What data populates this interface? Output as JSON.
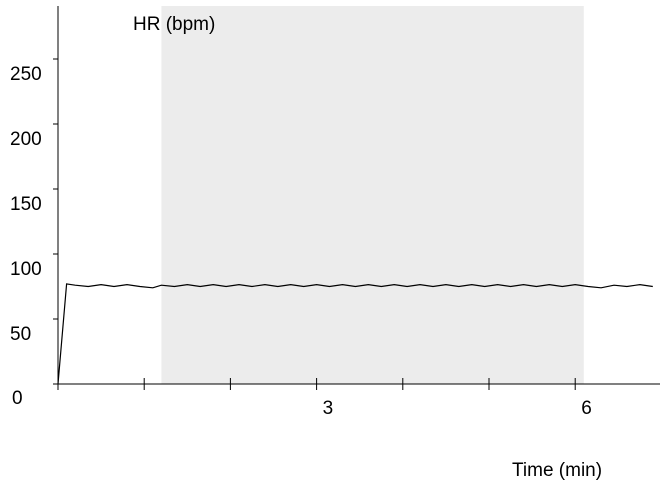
{
  "chart_data": {
    "type": "line",
    "ylabel": "HR (bpm)",
    "xlabel": "Time (min)",
    "ylim": [
      0,
      250
    ],
    "xlim": [
      0,
      6.9
    ],
    "y_ticks": [
      {
        "value": 0,
        "label": "0"
      },
      {
        "value": 50,
        "label": "50"
      },
      {
        "value": 100,
        "label": "100"
      },
      {
        "value": 150,
        "label": "150"
      },
      {
        "value": 200,
        "label": "200"
      },
      {
        "value": 250,
        "label": "250"
      }
    ],
    "x_ticks": [
      {
        "value": 0,
        "label": ""
      },
      {
        "value": 1,
        "label": ""
      },
      {
        "value": 2,
        "label": ""
      },
      {
        "value": 3,
        "label": "3"
      },
      {
        "value": 4,
        "label": ""
      },
      {
        "value": 5,
        "label": ""
      },
      {
        "value": 6,
        "label": "6"
      }
    ],
    "shaded_region": {
      "x_start": 1.2,
      "x_end": 6.1,
      "color": "#ececec"
    },
    "line_color": "#000000",
    "grid": false,
    "series": [
      {
        "values": [
          [
            0,
            0
          ],
          [
            0.1,
            77
          ],
          [
            0.2,
            76
          ],
          [
            0.35,
            75
          ],
          [
            0.5,
            76.5
          ],
          [
            0.65,
            75
          ],
          [
            0.8,
            76.5
          ],
          [
            0.95,
            75
          ],
          [
            1.1,
            74
          ],
          [
            1.2,
            76
          ],
          [
            1.35,
            75
          ],
          [
            1.5,
            76.5
          ],
          [
            1.65,
            75
          ],
          [
            1.8,
            76.5
          ],
          [
            1.95,
            75
          ],
          [
            2.1,
            76.5
          ],
          [
            2.25,
            75
          ],
          [
            2.4,
            76.5
          ],
          [
            2.55,
            75
          ],
          [
            2.7,
            76.5
          ],
          [
            2.85,
            75
          ],
          [
            3.0,
            76.5
          ],
          [
            3.15,
            75
          ],
          [
            3.3,
            76.5
          ],
          [
            3.45,
            75
          ],
          [
            3.6,
            76.5
          ],
          [
            3.75,
            75
          ],
          [
            3.9,
            76.5
          ],
          [
            4.05,
            75
          ],
          [
            4.2,
            76.5
          ],
          [
            4.35,
            75
          ],
          [
            4.5,
            76.5
          ],
          [
            4.65,
            75
          ],
          [
            4.8,
            76.5
          ],
          [
            4.95,
            75
          ],
          [
            5.1,
            76.5
          ],
          [
            5.25,
            75
          ],
          [
            5.4,
            76.5
          ],
          [
            5.55,
            75
          ],
          [
            5.7,
            76.5
          ],
          [
            5.85,
            75
          ],
          [
            6.0,
            76.5
          ],
          [
            6.15,
            75
          ],
          [
            6.3,
            74
          ],
          [
            6.45,
            76
          ],
          [
            6.6,
            75
          ],
          [
            6.75,
            76.5
          ],
          [
            6.9,
            75
          ]
        ]
      }
    ]
  }
}
